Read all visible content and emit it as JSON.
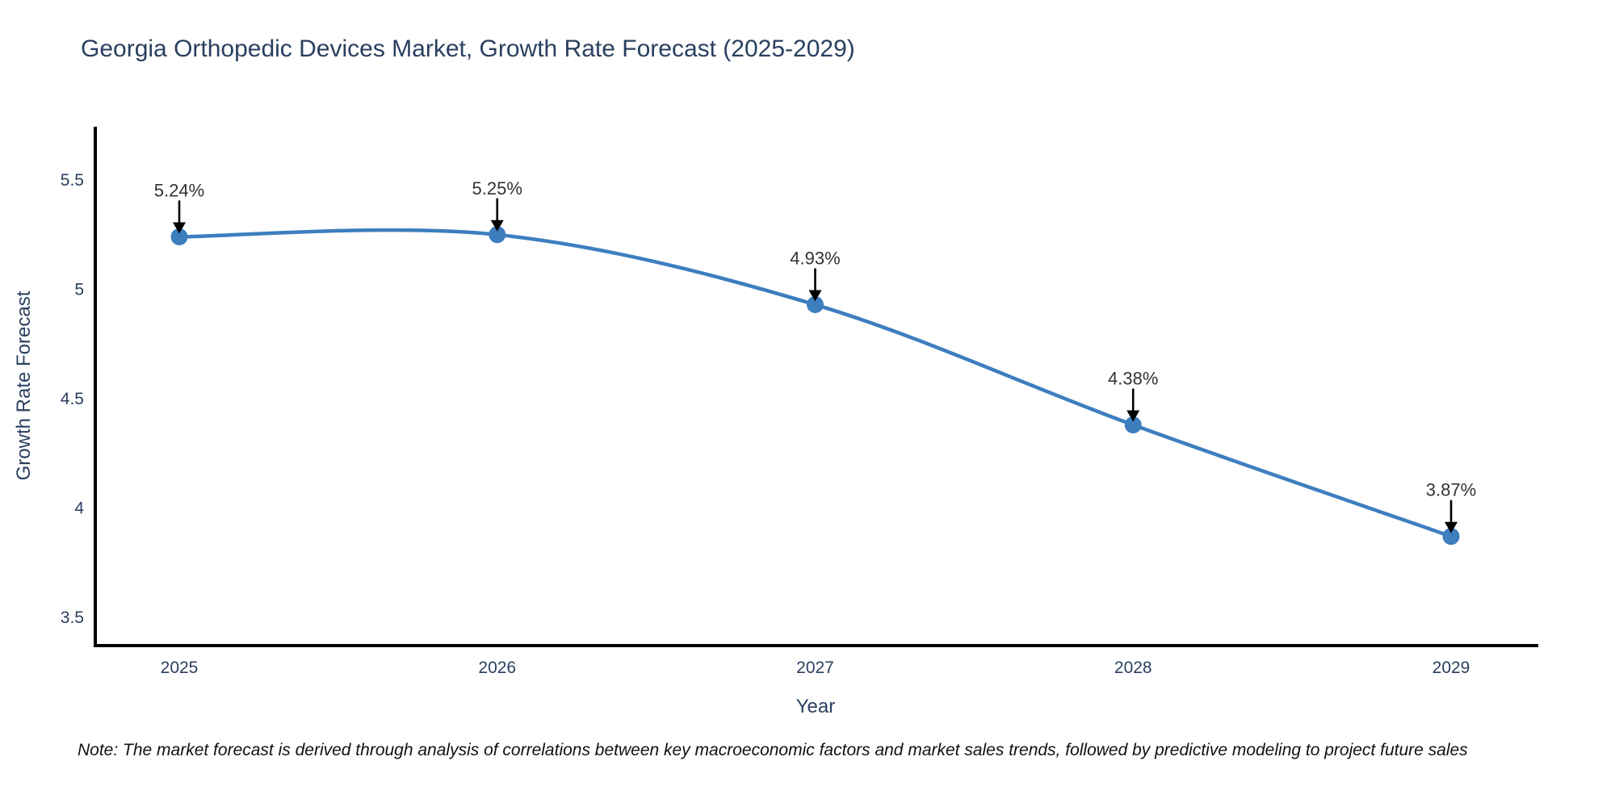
{
  "chart_data": {
    "type": "line",
    "title": "Georgia Orthopedic Devices Market, Growth Rate Forecast (2025-2029)",
    "xlabel": "Year",
    "ylabel": "Growth Rate Forecast",
    "categories": [
      "2025",
      "2026",
      "2027",
      "2028",
      "2029"
    ],
    "values": [
      5.24,
      5.25,
      4.93,
      4.38,
      3.87
    ],
    "point_labels": [
      "5.24%",
      "5.25%",
      "4.93%",
      "4.38%",
      "3.87%"
    ],
    "yticks": [
      "5.5",
      "5",
      "4.5",
      "4",
      "3.5"
    ],
    "ytick_values": [
      5.5,
      5.0,
      4.5,
      4.0,
      3.5
    ],
    "ylim": [
      3.37,
      5.74
    ],
    "grid": false,
    "line_shape": "spline",
    "legend": "none",
    "colors": {
      "line": "#3d7ebf",
      "marker": "#3d7ebf",
      "axis": "#000000",
      "title": "#2a3f5f",
      "tick": "#2a3f5f",
      "annotation_text": "#333333",
      "arrow": "#000000",
      "background": "#ffffff"
    }
  },
  "note": {
    "text": "Note: The market forecast is derived through analysis of correlations between key macroeconomic factors and market sales trends, followed by predictive modeling to project future sales"
  }
}
